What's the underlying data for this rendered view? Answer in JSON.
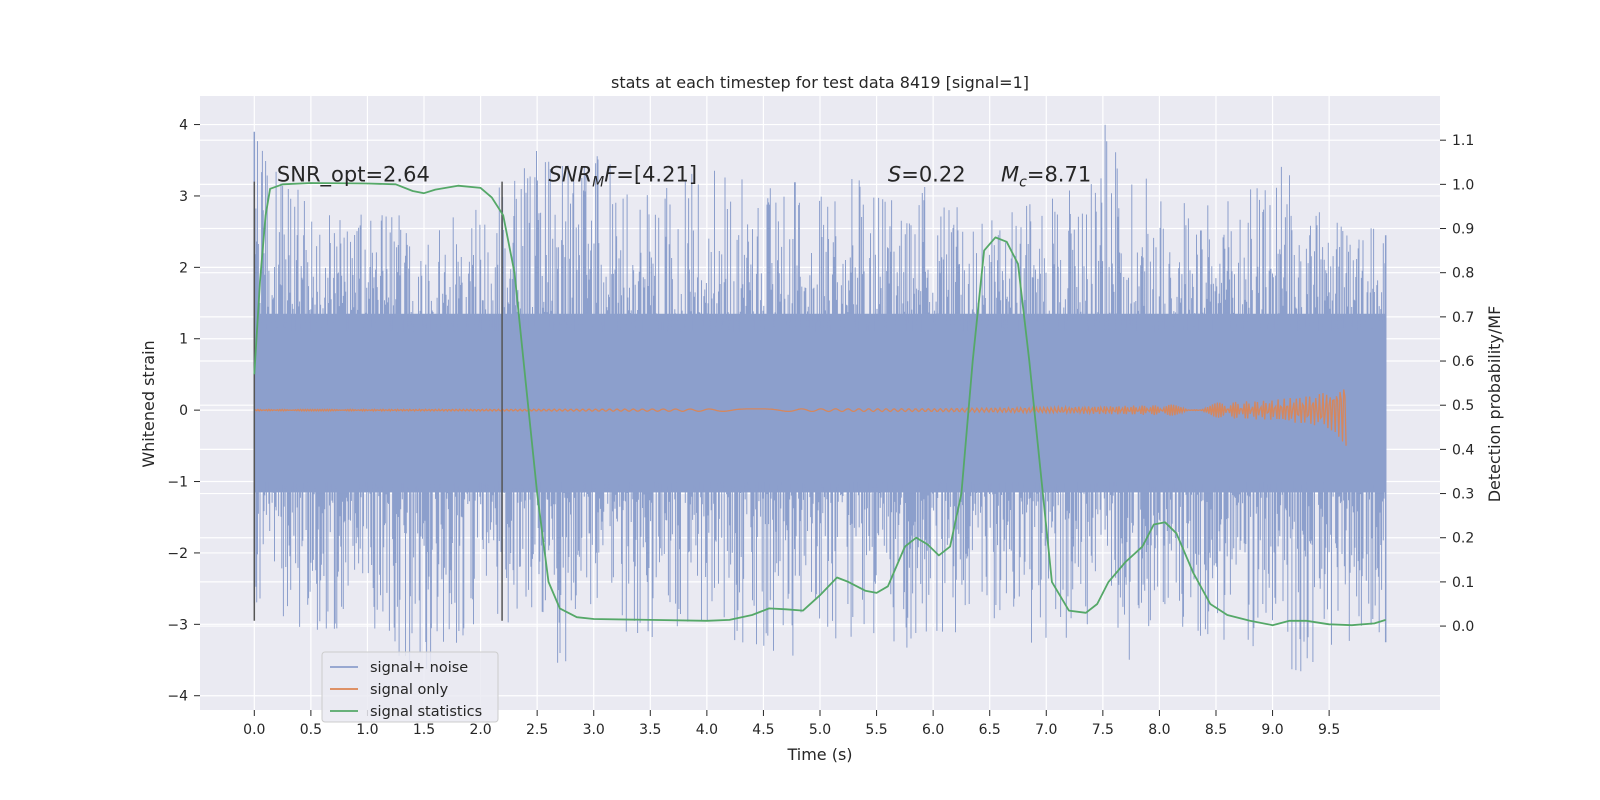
{
  "chart_data": {
    "type": "line",
    "title": "stats at each timestep for test data 8419 [signal=1]",
    "xlabel": "Time (s)",
    "ylabel": "Whitened strain",
    "y2label": "Detection probability/MF",
    "xlim": [
      -0.48,
      10.48
    ],
    "ylim": [
      -4.2,
      4.4
    ],
    "y2lim": [
      -0.19,
      1.2
    ],
    "xticks": [
      "0.0",
      "0.5",
      "1.0",
      "1.5",
      "2.0",
      "2.5",
      "3.0",
      "3.5",
      "4.0",
      "4.5",
      "5.0",
      "5.5",
      "6.0",
      "6.5",
      "7.0",
      "7.5",
      "8.0",
      "8.5",
      "9.0",
      "9.5"
    ],
    "yticks": [
      "4",
      "3",
      "2",
      "1",
      "0",
      "−1",
      "−2",
      "−3",
      "−4"
    ],
    "y2ticks": [
      "1.1",
      "1.0",
      "0.9",
      "0.8",
      "0.7",
      "0.6",
      "0.5",
      "0.4",
      "0.3",
      "0.2",
      "0.1",
      "0.0"
    ],
    "grid": true,
    "legend_position": "lower-left",
    "colors": {
      "background": "#eaeaf2",
      "signal_noise": "#8c9fcc",
      "signal_only": "#dd8452",
      "statistics": "#55a868",
      "vline": "#555555"
    },
    "annotations": [
      {
        "id": "snr_opt",
        "text": "SNR_opt=2.64",
        "x": 0.2,
        "y": 3.2
      },
      {
        "id": "snr_mf",
        "text": "SNR",
        "sub": "M",
        "rest": "F=[4.21]",
        "x": 2.6,
        "y": 3.2
      },
      {
        "id": "s",
        "text": "S",
        "rest": "=0.22",
        "x": 5.6,
        "y": 3.2
      },
      {
        "id": "mc",
        "text": "M",
        "sub": "c",
        "rest": "=8.71",
        "x": 6.6,
        "y": 3.2
      }
    ],
    "vlines": [
      {
        "x": 0.0,
        "y_range": [
          -2.95,
          3.2
        ]
      },
      {
        "x": 2.19,
        "y_range": [
          -2.95,
          3.2
        ]
      }
    ],
    "series": [
      {
        "name": "signal+ noise",
        "axis": "left",
        "style": "dense-noise",
        "x_range": [
          0.0,
          10.0
        ],
        "dense_band": [
          -1.15,
          1.35
        ],
        "upper_env": [
          [
            0.0,
            3.9
          ],
          [
            0.5,
            2.9
          ],
          [
            1.0,
            2.8
          ],
          [
            1.5,
            2.7
          ],
          [
            2.0,
            2.9
          ],
          [
            2.7,
            4.0
          ],
          [
            3.0,
            3.6
          ],
          [
            3.5,
            3.1
          ],
          [
            4.0,
            3.4
          ],
          [
            4.5,
            3.2
          ],
          [
            5.0,
            3.2
          ],
          [
            5.5,
            3.3
          ],
          [
            6.0,
            3.1
          ],
          [
            6.5,
            2.7
          ],
          [
            7.0,
            3.0
          ],
          [
            7.5,
            4.05
          ],
          [
            8.0,
            3.3
          ],
          [
            8.5,
            2.8
          ],
          [
            9.0,
            3.6
          ],
          [
            9.5,
            2.7
          ],
          [
            10.0,
            2.5
          ]
        ],
        "lower_env": [
          [
            0.0,
            -2.8
          ],
          [
            0.5,
            -3.2
          ],
          [
            1.0,
            -3.0
          ],
          [
            1.4,
            -3.8
          ],
          [
            2.0,
            -3.0
          ],
          [
            2.5,
            -3.2
          ],
          [
            2.7,
            -3.65
          ],
          [
            3.0,
            -3.0
          ],
          [
            3.5,
            -3.2
          ],
          [
            4.0,
            -3.1
          ],
          [
            4.5,
            -3.6
          ],
          [
            5.0,
            -3.3
          ],
          [
            5.5,
            -3.2
          ],
          [
            5.8,
            -3.55
          ],
          [
            6.0,
            -3.1
          ],
          [
            6.5,
            -3.2
          ],
          [
            7.0,
            -3.3
          ],
          [
            7.5,
            -3.0
          ],
          [
            7.8,
            -3.65
          ],
          [
            8.0,
            -3.1
          ],
          [
            8.5,
            -3.3
          ],
          [
            9.0,
            -3.4
          ],
          [
            9.2,
            -3.8
          ],
          [
            9.5,
            -3.3
          ],
          [
            10.0,
            -3.2
          ]
        ]
      },
      {
        "name": "signal only",
        "axis": "left",
        "style": "chirp",
        "x_range": [
          0.0,
          9.65
        ],
        "envelope": [
          [
            0.0,
            0.01
          ],
          [
            6.0,
            0.02
          ],
          [
            7.0,
            0.04
          ],
          [
            8.0,
            0.07
          ],
          [
            9.0,
            0.14
          ],
          [
            9.4,
            0.22
          ],
          [
            9.55,
            0.3
          ],
          [
            9.62,
            0.45
          ],
          [
            9.65,
            0.5
          ]
        ]
      },
      {
        "name": "signal statistics",
        "axis": "right",
        "style": "line",
        "points": [
          [
            0.0,
            0.57
          ],
          [
            0.05,
            0.78
          ],
          [
            0.1,
            0.93
          ],
          [
            0.14,
            0.99
          ],
          [
            0.25,
            1.0
          ],
          [
            0.5,
            1.003
          ],
          [
            1.0,
            1.002
          ],
          [
            1.25,
            1.0
          ],
          [
            1.4,
            0.985
          ],
          [
            1.5,
            0.98
          ],
          [
            1.6,
            0.988
          ],
          [
            1.8,
            0.997
          ],
          [
            2.0,
            0.992
          ],
          [
            2.1,
            0.97
          ],
          [
            2.2,
            0.93
          ],
          [
            2.3,
            0.8
          ],
          [
            2.4,
            0.55
          ],
          [
            2.5,
            0.3
          ],
          [
            2.6,
            0.1
          ],
          [
            2.7,
            0.04
          ],
          [
            2.85,
            0.02
          ],
          [
            3.0,
            0.016
          ],
          [
            3.5,
            0.014
          ],
          [
            4.0,
            0.012
          ],
          [
            4.2,
            0.014
          ],
          [
            4.4,
            0.025
          ],
          [
            4.55,
            0.04
          ],
          [
            4.7,
            0.038
          ],
          [
            4.85,
            0.035
          ],
          [
            5.0,
            0.07
          ],
          [
            5.15,
            0.11
          ],
          [
            5.25,
            0.1
          ],
          [
            5.4,
            0.08
          ],
          [
            5.5,
            0.075
          ],
          [
            5.6,
            0.09
          ],
          [
            5.75,
            0.18
          ],
          [
            5.85,
            0.2
          ],
          [
            5.95,
            0.185
          ],
          [
            6.05,
            0.16
          ],
          [
            6.15,
            0.18
          ],
          [
            6.25,
            0.3
          ],
          [
            6.35,
            0.6
          ],
          [
            6.45,
            0.85
          ],
          [
            6.55,
            0.88
          ],
          [
            6.65,
            0.87
          ],
          [
            6.75,
            0.82
          ],
          [
            6.85,
            0.6
          ],
          [
            6.95,
            0.35
          ],
          [
            7.05,
            0.1
          ],
          [
            7.2,
            0.035
          ],
          [
            7.35,
            0.03
          ],
          [
            7.45,
            0.05
          ],
          [
            7.55,
            0.1
          ],
          [
            7.7,
            0.145
          ],
          [
            7.85,
            0.18
          ],
          [
            7.95,
            0.23
          ],
          [
            8.05,
            0.235
          ],
          [
            8.15,
            0.21
          ],
          [
            8.3,
            0.12
          ],
          [
            8.45,
            0.05
          ],
          [
            8.6,
            0.025
          ],
          [
            8.8,
            0.012
          ],
          [
            9.0,
            0.002
          ],
          [
            9.15,
            0.012
          ],
          [
            9.3,
            0.012
          ],
          [
            9.5,
            0.004
          ],
          [
            9.7,
            0.002
          ],
          [
            9.9,
            0.006
          ],
          [
            10.0,
            0.014
          ]
        ]
      }
    ]
  }
}
